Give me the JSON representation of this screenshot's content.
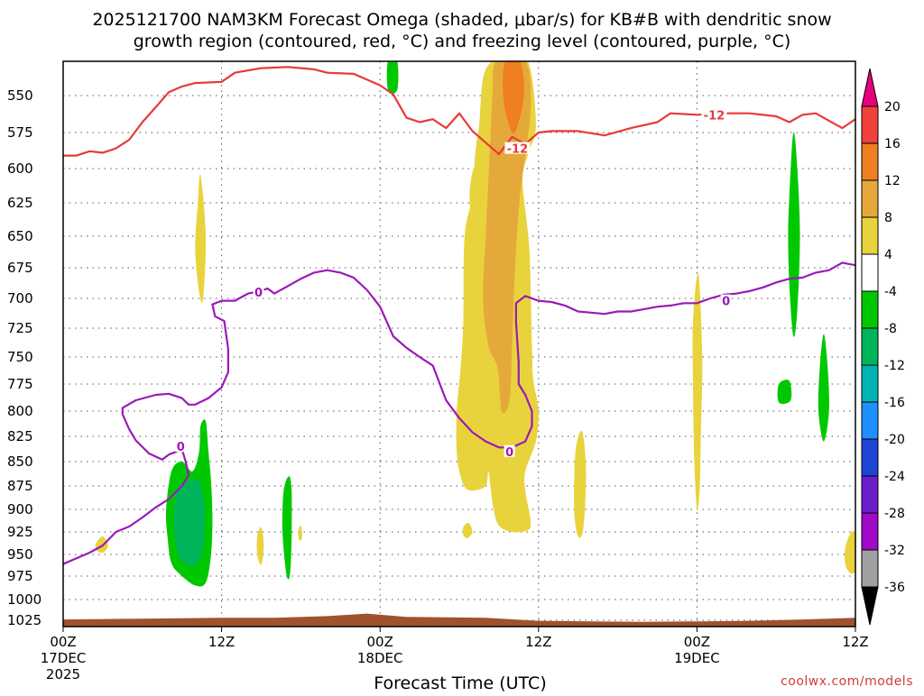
{
  "chart_data": {
    "type": "heatmap",
    "title_line1": "2025121700 NAM3KM Forecast Omega (shaded, μbar/s) for KB#B with dendritic snow",
    "title_line2": "growth region (contoured, red, °C) and freezing level (contoured, purple, °C)",
    "xlabel": "Forecast Time (UTC)",
    "credit": "coolwx.com/models",
    "y_ticks": [
      "550",
      "575",
      "600",
      "625",
      "650",
      "675",
      "700",
      "725",
      "750",
      "775",
      "800",
      "825",
      "850",
      "875",
      "900",
      "925",
      "950",
      "975",
      "1000",
      "1025"
    ],
    "y_values": [
      550,
      575,
      600,
      625,
      650,
      675,
      700,
      725,
      750,
      775,
      800,
      825,
      850,
      875,
      900,
      925,
      950,
      975,
      1000,
      1025
    ],
    "ylim": [
      1037,
      520
    ],
    "x_range_hours": [
      0,
      60
    ],
    "x_ticks": [
      {
        "hour": 0,
        "label": "00Z",
        "sub": "17DEC",
        "sub2": "2025"
      },
      {
        "hour": 12,
        "label": "12Z",
        "sub": "",
        "sub2": ""
      },
      {
        "hour": 24,
        "label": "00Z",
        "sub": "18DEC",
        "sub2": ""
      },
      {
        "hour": 36,
        "label": "12Z",
        "sub": "",
        "sub2": ""
      },
      {
        "hour": 48,
        "label": "00Z",
        "sub": "19DEC",
        "sub2": ""
      },
      {
        "hour": 60,
        "label": "12Z",
        "sub": "",
        "sub2": ""
      }
    ],
    "colorbar": {
      "labels": [
        "20",
        "16",
        "12",
        "8",
        "4",
        "-4",
        "-8",
        "-12",
        "-16",
        "-20",
        "-24",
        "-28",
        "-32",
        "-36"
      ],
      "colors": [
        "#e6007e",
        "#f0413c",
        "#ee7f22",
        "#e5a93b",
        "#e9d33c",
        "#ffffff",
        "#00c800",
        "#00b45a",
        "#00b4b4",
        "#1e90ff",
        "#1f45d6",
        "#6a1ecc",
        "#a00ac8",
        "#a0a0a0",
        "#000000"
      ]
    },
    "contours": {
      "dendritic_snow_label": "-12",
      "freezing_level_label": "0",
      "dendritic_color": "#e8393a",
      "freezing_color": "#9a1ab8",
      "dendritic_snow_minus12": [
        [
          0,
          591
        ],
        [
          1,
          591
        ],
        [
          2,
          588
        ],
        [
          3,
          589
        ],
        [
          4,
          586
        ],
        [
          5,
          580
        ],
        [
          6,
          568
        ],
        [
          7,
          558
        ],
        [
          8,
          547
        ],
        [
          9,
          542
        ],
        [
          10,
          539
        ],
        [
          12,
          538
        ],
        [
          13,
          530
        ],
        [
          15,
          526
        ],
        [
          17,
          525
        ],
        [
          19,
          527
        ],
        [
          20,
          530
        ],
        [
          22,
          531
        ],
        [
          24,
          541
        ],
        [
          25,
          549
        ],
        [
          26,
          565
        ],
        [
          27,
          568
        ],
        [
          28,
          566
        ],
        [
          29,
          572
        ],
        [
          30,
          562
        ],
        [
          31,
          574
        ],
        [
          32,
          582
        ],
        [
          33,
          590
        ],
        [
          34,
          578
        ],
        [
          35,
          583
        ],
        [
          36,
          575
        ],
        [
          37,
          574
        ],
        [
          39,
          574
        ],
        [
          41,
          577
        ],
        [
          43,
          572
        ],
        [
          45,
          568
        ],
        [
          46,
          562
        ],
        [
          48,
          563
        ],
        [
          50,
          562
        ],
        [
          52,
          562
        ],
        [
          54,
          564
        ],
        [
          55,
          568
        ],
        [
          56,
          563
        ],
        [
          57,
          562
        ],
        [
          58,
          567
        ],
        [
          59,
          572
        ],
        [
          60,
          566
        ]
      ],
      "freezing_level_0": [
        [
          0,
          961
        ],
        [
          2,
          948
        ],
        [
          3,
          940
        ],
        [
          4,
          925
        ],
        [
          5,
          919
        ],
        [
          6,
          909
        ],
        [
          7,
          898
        ],
        [
          8,
          889
        ],
        [
          9,
          875
        ],
        [
          9.5,
          864
        ],
        [
          9.3,
          851
        ],
        [
          9,
          838
        ],
        [
          8,
          843
        ],
        [
          7.5,
          848
        ],
        [
          6.5,
          842
        ],
        [
          5.5,
          829
        ],
        [
          5,
          818
        ],
        [
          4.5,
          803
        ],
        [
          4.5,
          797
        ],
        [
          5.5,
          790
        ],
        [
          7,
          785
        ],
        [
          8,
          784
        ],
        [
          9,
          788
        ],
        [
          9.5,
          794
        ],
        [
          10,
          794
        ],
        [
          11,
          788
        ],
        [
          12,
          778
        ],
        [
          12.5,
          764
        ],
        [
          12.5,
          743
        ],
        [
          12.2,
          719
        ],
        [
          11.5,
          715
        ],
        [
          11.3,
          705
        ],
        [
          12,
          702
        ],
        [
          13,
          702
        ],
        [
          14,
          696
        ],
        [
          14.5,
          695
        ],
        [
          15.5,
          692
        ],
        [
          16,
          696
        ],
        [
          17,
          690
        ],
        [
          18,
          684
        ],
        [
          19,
          679
        ],
        [
          20,
          677
        ],
        [
          21,
          679
        ],
        [
          22,
          683
        ],
        [
          23,
          693
        ],
        [
          24,
          707
        ],
        [
          25,
          732
        ],
        [
          26,
          742
        ],
        [
          27,
          750
        ],
        [
          28,
          758
        ],
        [
          29,
          790
        ],
        [
          30,
          807
        ],
        [
          31,
          821
        ],
        [
          32,
          830
        ],
        [
          33,
          836
        ],
        [
          34,
          836
        ],
        [
          35,
          830
        ],
        [
          35.5,
          815
        ],
        [
          35.5,
          800
        ],
        [
          35,
          785
        ],
        [
          34.5,
          775
        ],
        [
          34.5,
          755
        ],
        [
          34.3,
          720
        ],
        [
          34.3,
          704
        ],
        [
          35,
          698
        ],
        [
          36,
          702
        ],
        [
          37,
          703
        ],
        [
          38,
          706
        ],
        [
          39,
          711
        ],
        [
          40,
          712
        ],
        [
          41,
          713
        ],
        [
          42,
          711
        ],
        [
          43,
          711
        ],
        [
          44,
          709
        ],
        [
          45,
          707
        ],
        [
          46,
          706
        ],
        [
          47,
          704
        ],
        [
          48,
          704
        ],
        [
          49,
          700
        ],
        [
          50,
          697
        ],
        [
          51,
          696
        ],
        [
          52,
          694
        ],
        [
          53,
          691
        ],
        [
          54,
          687
        ],
        [
          55,
          684
        ],
        [
          56,
          683
        ],
        [
          57,
          679
        ],
        [
          58,
          677
        ],
        [
          59,
          671
        ],
        [
          60,
          673
        ]
      ]
    },
    "shaded_regions": [
      {
        "name": "brown",
        "color": "#a0522d",
        "top": [
          [
            0,
            1024
          ],
          [
            6,
            1023
          ],
          [
            12,
            1022
          ],
          [
            16,
            1022
          ],
          [
            20,
            1020
          ],
          [
            23,
            1017
          ],
          [
            26,
            1021
          ],
          [
            32,
            1022
          ],
          [
            36,
            1026
          ],
          [
            40,
            1027
          ],
          [
            44,
            1028
          ],
          [
            48,
            1027
          ],
          [
            52,
            1026
          ],
          [
            56,
            1024
          ],
          [
            60,
            1022
          ]
        ],
        "bottom": 1037
      }
    ]
  }
}
